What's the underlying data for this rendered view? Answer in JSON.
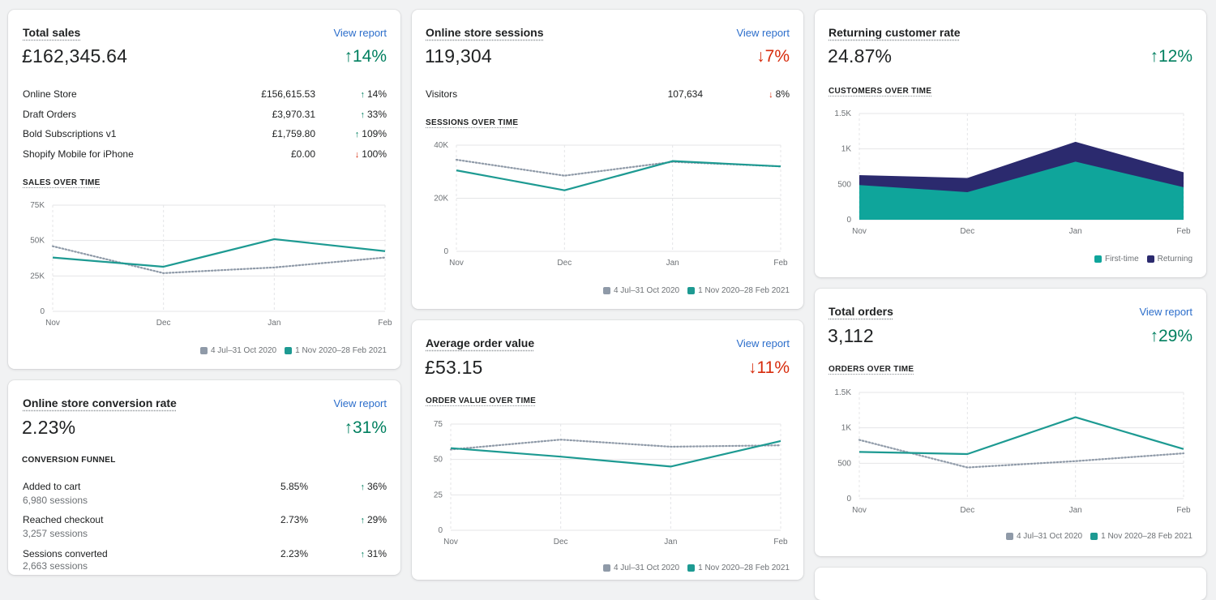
{
  "total_sales": {
    "title": "Total sales",
    "link": "View report",
    "value": "£162,345.64",
    "delta": "14%",
    "rows": [
      {
        "label": "Online Store",
        "value": "£156,615.53",
        "delta": "14%",
        "dir": "up"
      },
      {
        "label": "Draft Orders",
        "value": "£3,970.31",
        "delta": "33%",
        "dir": "up"
      },
      {
        "label": "Bold Subscriptions v1",
        "value": "£1,759.80",
        "delta": "109%",
        "dir": "up"
      },
      {
        "label": "Shopify Mobile for iPhone",
        "value": "£0.00",
        "delta": "100%",
        "dir": "down"
      }
    ],
    "chart_title": "SALES OVER TIME",
    "legend": [
      "4 Jul–31 Oct 2020",
      "1 Nov 2020–28 Feb 2021"
    ]
  },
  "sessions": {
    "title": "Online store sessions",
    "link": "View report",
    "value": "119,304",
    "delta": "7%",
    "rows": [
      {
        "label": "Visitors",
        "value": "107,634",
        "delta": "8%",
        "dir": "down"
      }
    ],
    "chart_title": "SESSIONS OVER TIME",
    "legend": [
      "4 Jul–31 Oct 2020",
      "1 Nov 2020–28 Feb 2021"
    ]
  },
  "returning": {
    "title": "Returning customer rate",
    "value": "24.87%",
    "delta": "12%",
    "chart_title": "CUSTOMERS OVER TIME",
    "legend": [
      "First-time",
      "Returning"
    ]
  },
  "conversion": {
    "title": "Online store conversion rate",
    "link": "View report",
    "value": "2.23%",
    "delta": "31%",
    "funnel_title": "CONVERSION FUNNEL",
    "funnel": [
      {
        "label": "Added to cart",
        "sub": "6,980 sessions",
        "value": "5.85%",
        "delta": "36%"
      },
      {
        "label": "Reached checkout",
        "sub": "3,257 sessions",
        "value": "2.73%",
        "delta": "29%"
      },
      {
        "label": "Sessions converted",
        "sub": "2,663 sessions",
        "value": "2.23%",
        "delta": "31%"
      }
    ]
  },
  "aov": {
    "title": "Average order value",
    "link": "View report",
    "value": "£53.15",
    "delta": "11%",
    "chart_title": "ORDER VALUE OVER TIME",
    "legend": [
      "4 Jul–31 Oct 2020",
      "1 Nov 2020–28 Feb 2021"
    ]
  },
  "orders": {
    "title": "Total orders",
    "link": "View report",
    "value": "3,112",
    "delta": "29%",
    "chart_title": "ORDERS OVER TIME",
    "legend": [
      "4 Jul–31 Oct 2020",
      "1 Nov 2020–28 Feb 2021"
    ]
  },
  "icons": {
    "up": "↑",
    "down": "↓",
    "up_name": "arrow-up-icon",
    "down_name": "arrow-down-icon"
  },
  "colors": {
    "current": "#1d9a92",
    "previous": "#8f9aa8",
    "first_time": "#0fa59b",
    "returning": "#2b2a6e",
    "up": "#007f5f",
    "down": "#d72c0d"
  },
  "chart_data": [
    {
      "type": "line",
      "name": "sales",
      "x": [
        "Nov",
        "Dec",
        "Jan",
        "Feb"
      ],
      "y_ticks": [
        "0",
        "25K",
        "50K",
        "75K"
      ],
      "ylim": [
        0,
        75000
      ],
      "series": [
        {
          "name": "4 Jul–31 Oct 2020",
          "values": [
            46000,
            27000,
            31000,
            38000
          ],
          "style": "dotted"
        },
        {
          "name": "1 Nov 2020–28 Feb 2021",
          "values": [
            38000,
            31500,
            51000,
            42500
          ],
          "style": "solid"
        }
      ]
    },
    {
      "type": "line",
      "name": "sessions",
      "x": [
        "Nov",
        "Dec",
        "Jan",
        "Feb"
      ],
      "y_ticks": [
        "0",
        "20K",
        "40K"
      ],
      "ylim": [
        0,
        40000
      ],
      "series": [
        {
          "name": "4 Jul–31 Oct 2020",
          "values": [
            34500,
            28500,
            33700,
            32000
          ],
          "style": "dotted"
        },
        {
          "name": "1 Nov 2020–28 Feb 2021",
          "values": [
            30500,
            23000,
            34000,
            32000
          ],
          "style": "solid"
        }
      ]
    },
    {
      "type": "area",
      "name": "customers",
      "x": [
        "Nov",
        "Dec",
        "Jan",
        "Feb"
      ],
      "y_ticks": [
        "0",
        "500",
        "1K",
        "1.5K"
      ],
      "ylim": [
        0,
        1500
      ],
      "stacked": true,
      "series": [
        {
          "name": "First-time",
          "values": [
            490,
            390,
            820,
            460
          ]
        },
        {
          "name": "Returning",
          "values": [
            140,
            200,
            280,
            210
          ]
        }
      ]
    },
    {
      "type": "line",
      "name": "order value",
      "x": [
        "Nov",
        "Dec",
        "Jan",
        "Feb"
      ],
      "y_ticks": [
        "0",
        "25",
        "50",
        "75"
      ],
      "ylim": [
        0,
        75
      ],
      "series": [
        {
          "name": "4 Jul–31 Oct 2020",
          "values": [
            57,
            64,
            59,
            60
          ],
          "style": "dotted"
        },
        {
          "name": "1 Nov 2020–28 Feb 2021",
          "values": [
            58,
            52,
            45,
            63
          ],
          "style": "solid"
        }
      ]
    },
    {
      "type": "line",
      "name": "orders",
      "x": [
        "Nov",
        "Dec",
        "Jan",
        "Feb"
      ],
      "y_ticks": [
        "0",
        "500",
        "1K",
        "1.5K"
      ],
      "ylim": [
        0,
        1500
      ],
      "series": [
        {
          "name": "4 Jul–31 Oct 2020",
          "values": [
            830,
            440,
            530,
            640
          ],
          "style": "dotted"
        },
        {
          "name": "1 Nov 2020–28 Feb 2021",
          "values": [
            660,
            630,
            1150,
            700
          ],
          "style": "solid"
        }
      ]
    }
  ]
}
